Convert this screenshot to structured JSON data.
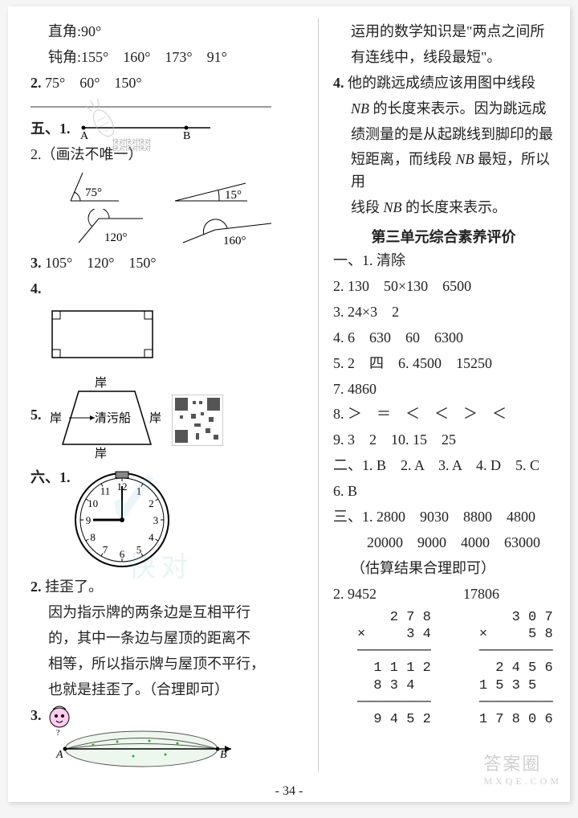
{
  "left": {
    "l1": "直角:90°",
    "l2": "钝角:155°　160°　173°　91°",
    "l3_pre": "2.",
    "l3": "75°　60°　150°",
    "sec5": "五、1.",
    "pointA": "A",
    "pointB": "B",
    "l5": "2.（画法不唯一）",
    "ang75": "75°",
    "ang15": "15°",
    "ang120": "120°",
    "ang160": "160°",
    "l9_pre": "3.",
    "l9": "105°　120°　150°",
    "l10": "4.",
    "l11": "5.",
    "bank": "岸",
    "boat": "清污船",
    "sec6": "六、1.",
    "l13_pre": "2.",
    "l13": "挂歪了。",
    "l14": "因为指示牌的两条边是互相平行",
    "l15": "的，其中一条边与屋顶的距离不",
    "l16": "相等，所以指示牌与屋顶不平行，",
    "l17": "也就是挂歪了。（合理即可）",
    "l18": "3.",
    "eyeA": "A",
    "eyeB": "B"
  },
  "right": {
    "r1": "运用的数学知识是\"两点之间所",
    "r2": "有连线中，线段最短\"。",
    "r3_pre": "4.",
    "r3": "他的跳远成绩应该用图中线段",
    "r4a": "NB",
    "r4b": " 的长度来表示。因为跳远成",
    "r5": "绩测量的是从起跳线到脚印的最",
    "r6a": "短距离，而线段 ",
    "r6b": "NB",
    "r6c": " 最短，所以用",
    "r7a": "线段 ",
    "r7b": "NB",
    "r7c": " 的长度来表示。",
    "title": "第三单元综合素养评价",
    "a1": "一、1. 清除",
    "a2": "2. 130　50×130　6500",
    "a3": "3. 24×3　2",
    "a4": "4. 6　630　60　6300",
    "a5": "5. 2　四　6. 4500　15250",
    "a6": "7. 4860",
    "a7": "8. ＞　＝　＜　＜　＞　＜",
    "a8": "9. 3　2　10. 15　25",
    "a9": "二、1. B　2. A　3. A　4. D　5. C",
    "a10": "6. B",
    "a11": "三、1. 2800　9030　8800　4800",
    "a12": "20000　9000　4000　63000",
    "a13": "（估算结果合理即可）",
    "a14": "2. 9452　　　　　　17806",
    "mult1": "    2 7 8\n×     3 4\n─────────\n  1 1 1 2\n  8 3 4\n─────────\n  9 4 5 2",
    "mult2": "    3 0 7\n×     5 8\n─────────\n  2 4 5 6\n1 5 3 5\n─────────\n1 7 8 0 6"
  },
  "pagenum": "- 34 -",
  "wm_brand": "答案圈",
  "wm_url": "MXQE.COM",
  "clock_hours": [
    "12",
    "1",
    "2",
    "3",
    "4",
    "5",
    "6",
    "7",
    "8",
    "9",
    "10",
    "11"
  ]
}
